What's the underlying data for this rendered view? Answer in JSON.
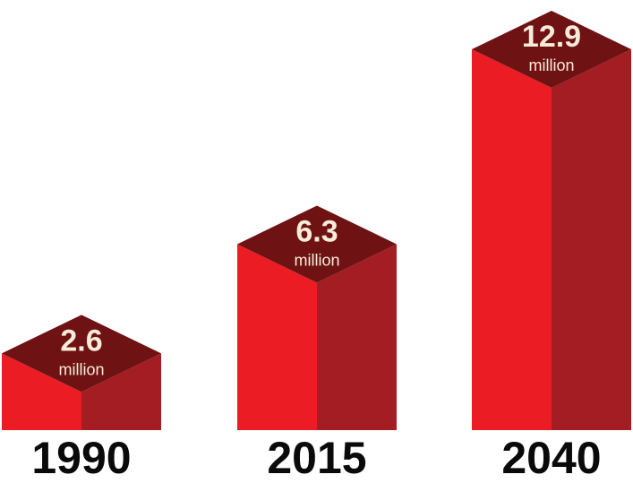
{
  "chart_data": {
    "type": "bar",
    "categories": [
      "1990",
      "2015",
      "2040"
    ],
    "values": [
      2.6,
      6.3,
      12.9
    ],
    "value_labels": [
      "2.6",
      "6.3",
      "12.9"
    ],
    "unit_label": "million",
    "ylim": [
      0,
      12.9
    ],
    "grid": false,
    "colors": {
      "front": "#ec1c24",
      "side": "#a31d22",
      "top": "#6e1214",
      "label": "#f7ecd8",
      "category": "#0a0a0a"
    }
  }
}
